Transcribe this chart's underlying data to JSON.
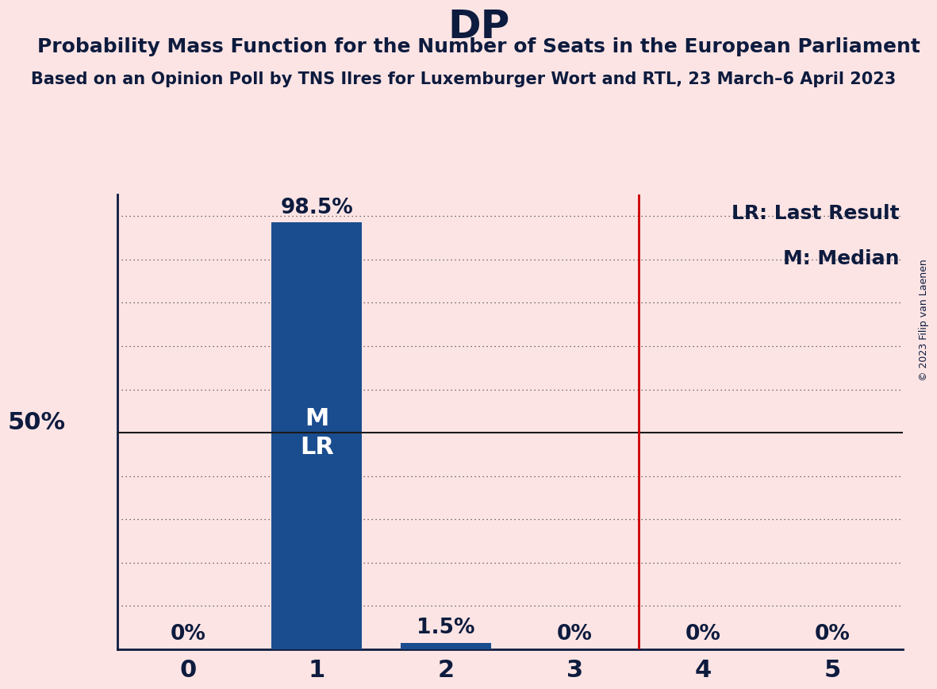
{
  "title": "DP",
  "subtitle": "Probability Mass Function for the Number of Seats in the European Parliament",
  "source_line": "Based on an Opinion Poll by TNS Ilres for Luxemburger Wort and RTL, 23 March–6 April 2023",
  "copyright": "© 2023 Filip van Laenen",
  "categories": [
    0,
    1,
    2,
    3,
    4,
    5
  ],
  "values": [
    0.0,
    0.985,
    0.015,
    0.0,
    0.0,
    0.0
  ],
  "bar_labels": [
    "0%",
    "98.5%",
    "1.5%",
    "0%",
    "0%",
    "0%"
  ],
  "bar_color": "#1a4d8f",
  "background_color": "#fce4e4",
  "text_color": "#0d1b3e",
  "median_seat": 1,
  "last_result_seat": 1,
  "median_label": "M",
  "last_result_label": "LR",
  "vertical_line_x": 3.5,
  "vertical_line_color": "#cc0000",
  "fifty_pct_line_color": "#1a1a1a",
  "legend_lr": "LR: Last Result",
  "legend_m": "M: Median",
  "ylabel_50": "50%",
  "grid_color": "#444444",
  "title_fontsize": 36,
  "subtitle_fontsize": 18,
  "source_fontsize": 15,
  "bar_label_fontsize": 19,
  "bar_inner_label_fontsize": 22,
  "axis_tick_fontsize": 22,
  "legend_fontsize": 18,
  "fifty_label_fontsize": 22,
  "ylim": [
    0,
    1.05
  ]
}
